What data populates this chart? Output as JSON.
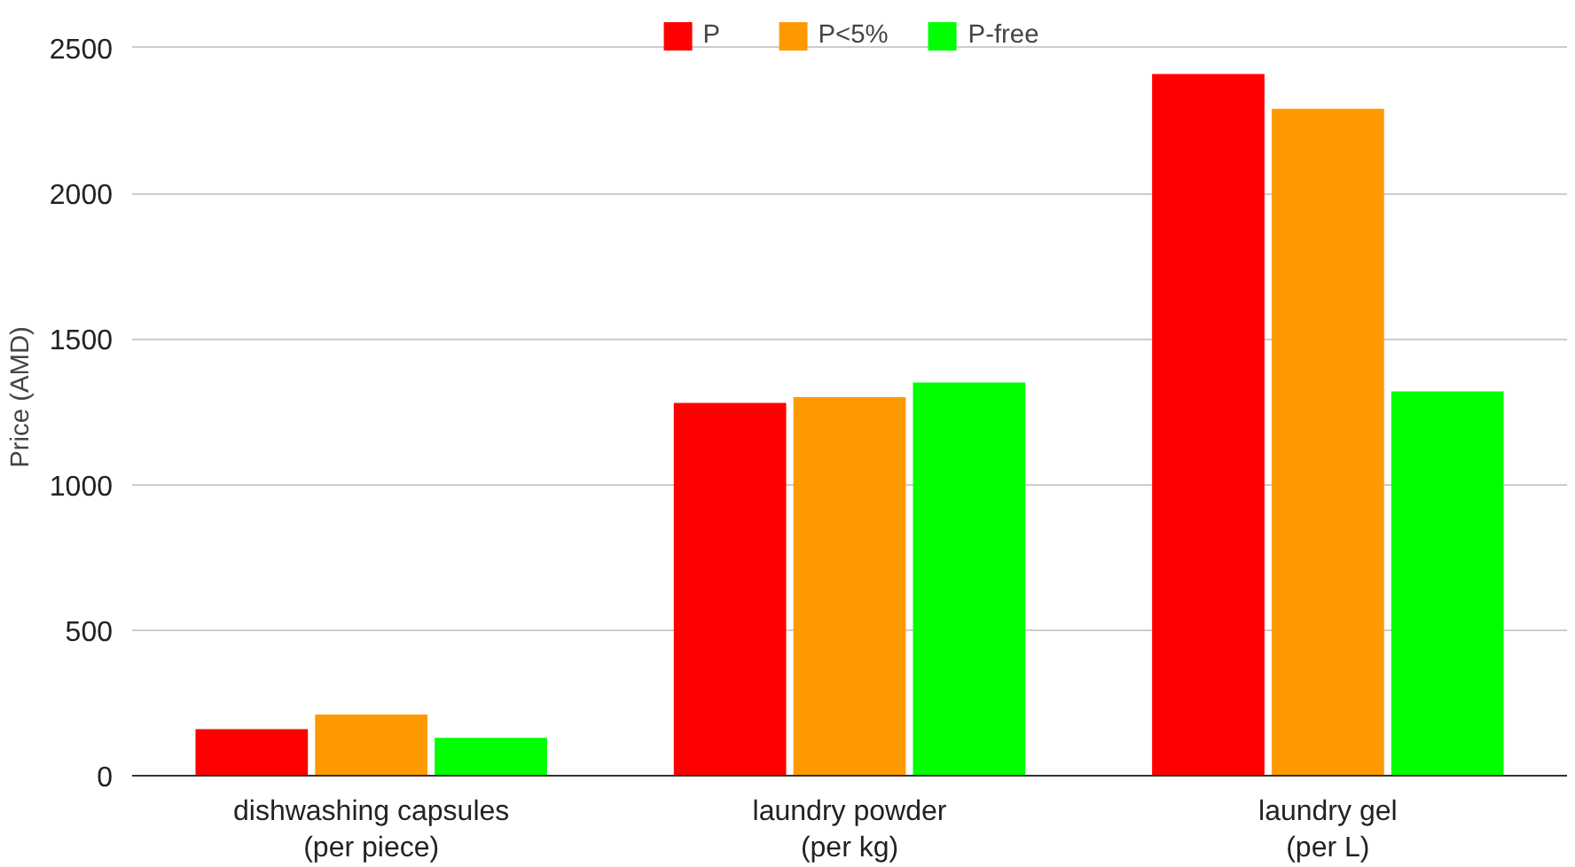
{
  "chart_data": {
    "type": "bar",
    "ylabel": "Price (AMD)",
    "categories": [
      "dishwashing capsules\n(per piece)",
      "laundry powder\n(per kg)",
      "laundry gel\n(per L)"
    ],
    "series": [
      {
        "name": "P",
        "color": "#ff0000",
        "values": [
          160,
          1280,
          2410
        ]
      },
      {
        "name": "P<5%",
        "color": "#ff9900",
        "values": [
          210,
          1300,
          2290
        ]
      },
      {
        "name": "P-free",
        "color": "#00ff00",
        "values": [
          130,
          1350,
          1320
        ]
      }
    ],
    "ylim": [
      0,
      2600
    ],
    "yticks": [
      0,
      500,
      1000,
      1500,
      2000,
      2500
    ],
    "grid": "y",
    "legend": "top"
  }
}
